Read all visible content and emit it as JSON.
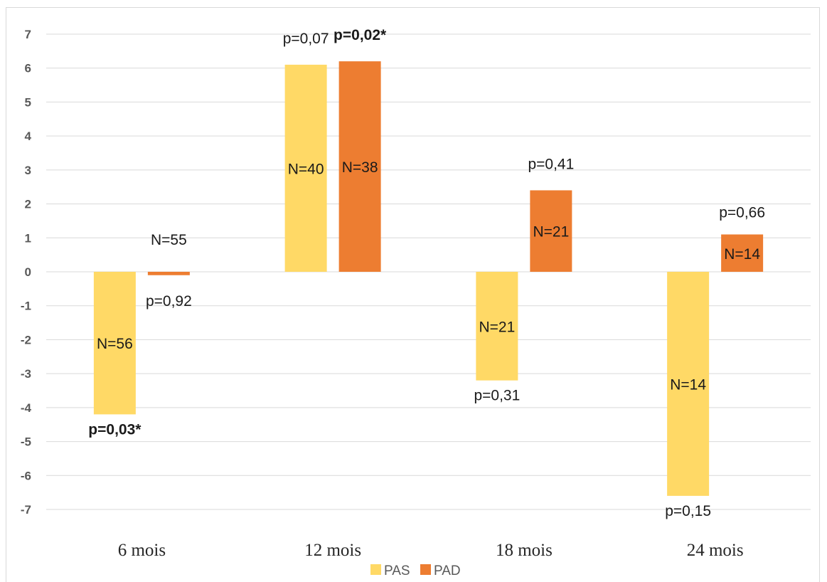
{
  "chart_data": {
    "type": "bar",
    "categories": [
      "6 mois",
      "12 mois",
      "18 mois",
      "24 mois"
    ],
    "ylim": [
      -7,
      7
    ],
    "yticks": [
      7,
      6,
      5,
      4,
      3,
      2,
      1,
      0,
      -1,
      -2,
      -3,
      -4,
      -5,
      -6,
      -7
    ],
    "grid": true,
    "legend_position": "bottom",
    "series": [
      {
        "name": "PAS",
        "color": "#FFD966",
        "values": [
          -4.2,
          6.1,
          -3.2,
          -6.6
        ],
        "n_labels": [
          "N=56",
          "N=40",
          "N=21",
          "N=14"
        ],
        "p_labels": [
          "p=0,03*",
          "p=0,07",
          "p=0,31",
          "p=0,15"
        ],
        "p_significant": [
          true,
          false,
          false,
          false
        ]
      },
      {
        "name": "PAD",
        "color": "#ED7D31",
        "values": [
          -0.1,
          6.2,
          2.4,
          1.1
        ],
        "n_labels": [
          "N=55",
          "N=38",
          "N=21",
          "N=14"
        ],
        "p_labels": [
          "p=0,92",
          "p=0,02*",
          "p=0,41",
          "p=0,66"
        ],
        "p_significant": [
          false,
          true,
          false,
          false
        ]
      }
    ]
  }
}
